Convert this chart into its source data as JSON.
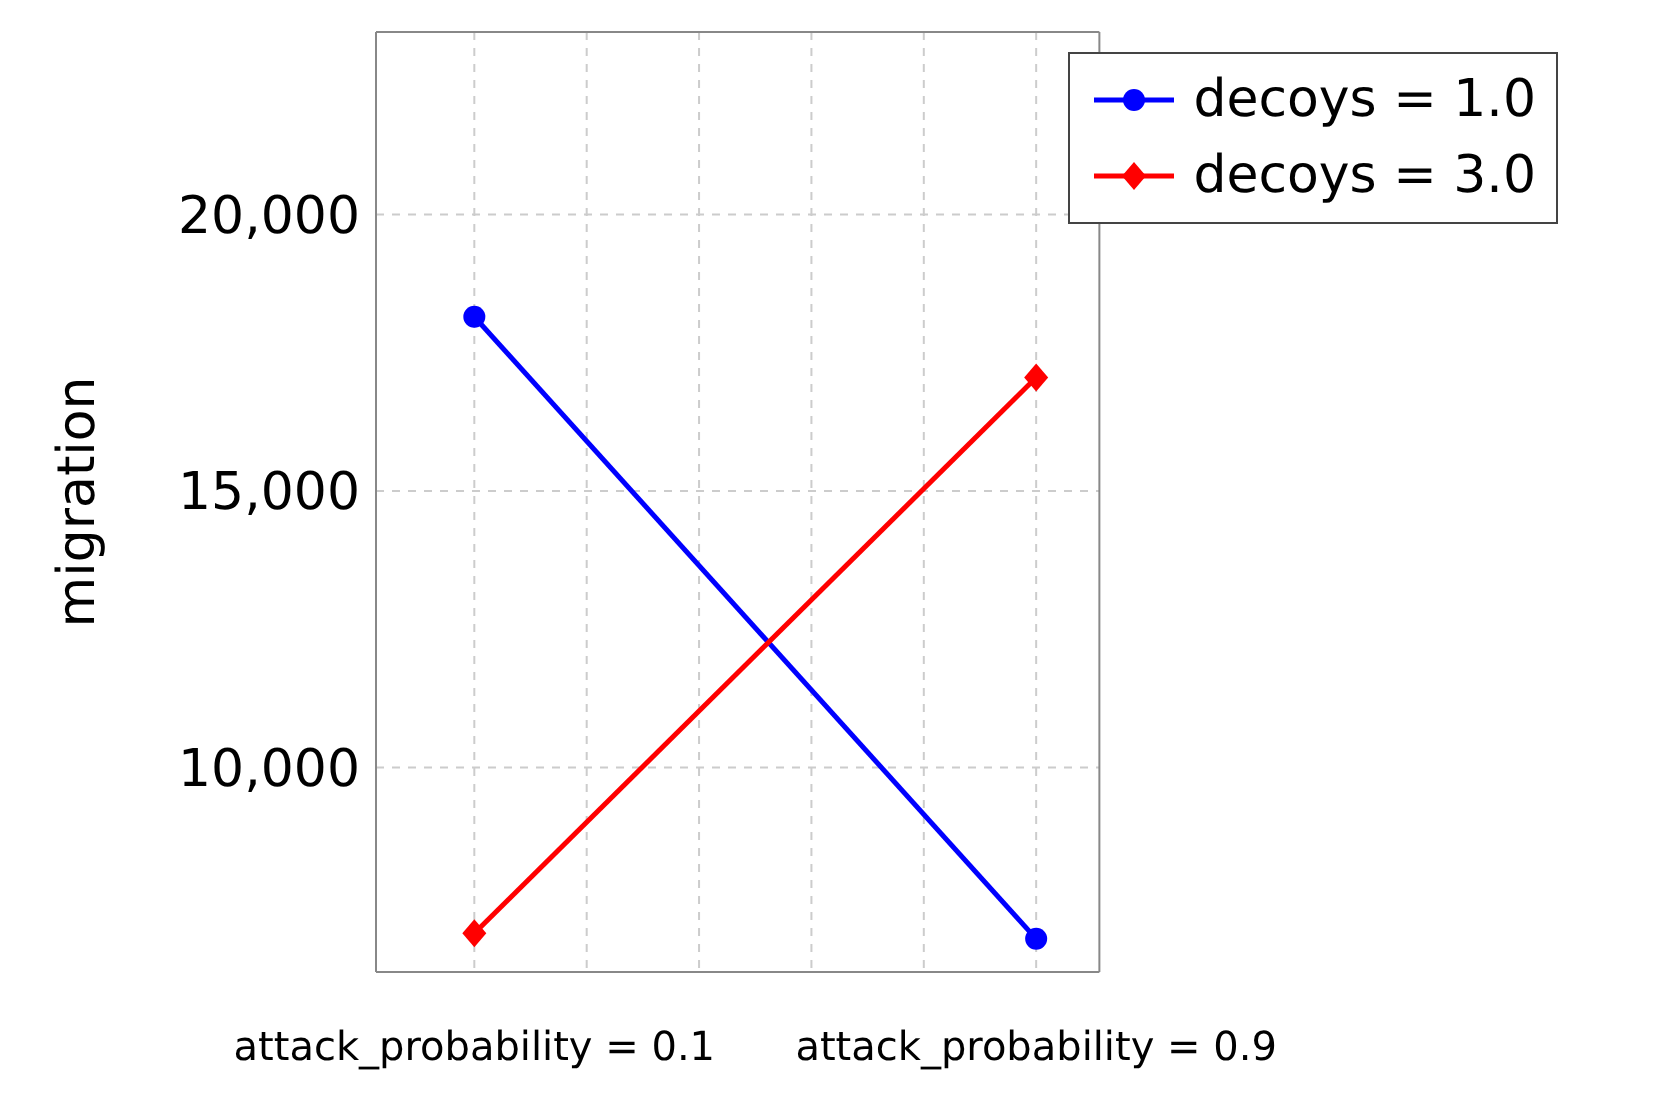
{
  "chart_data": {
    "type": "line",
    "ylabel": "migration",
    "x": [
      0.1,
      0.9
    ],
    "series": [
      {
        "name": "decoys = 1.0",
        "color": "#0000ff",
        "values": [
          18150,
          6900
        ],
        "marker": "circle"
      },
      {
        "name": "decoys = 3.0",
        "color": "#ff0000",
        "values": [
          7000,
          17050
        ],
        "marker": "diamond"
      }
    ],
    "xlim": [
      -0.04,
      0.99
    ],
    "xticks": [
      {
        "value": 0.1,
        "label": "attack_probability = 0.1"
      },
      {
        "value": 0.26,
        "label": null
      },
      {
        "value": 0.42,
        "label": null
      },
      {
        "value": 0.58,
        "label": null
      },
      {
        "value": 0.74,
        "label": null
      },
      {
        "value": 0.9,
        "label": "attack_probability = 0.9"
      }
    ],
    "ylim": [
      6300,
      23300
    ],
    "yticks": [
      {
        "value": 10000,
        "label": "10,000"
      },
      {
        "value": 15000,
        "label": "15,000"
      },
      {
        "value": 20000,
        "label": "20,000"
      }
    ],
    "grid": true,
    "legend": "top right",
    "line_style": "solid"
  }
}
